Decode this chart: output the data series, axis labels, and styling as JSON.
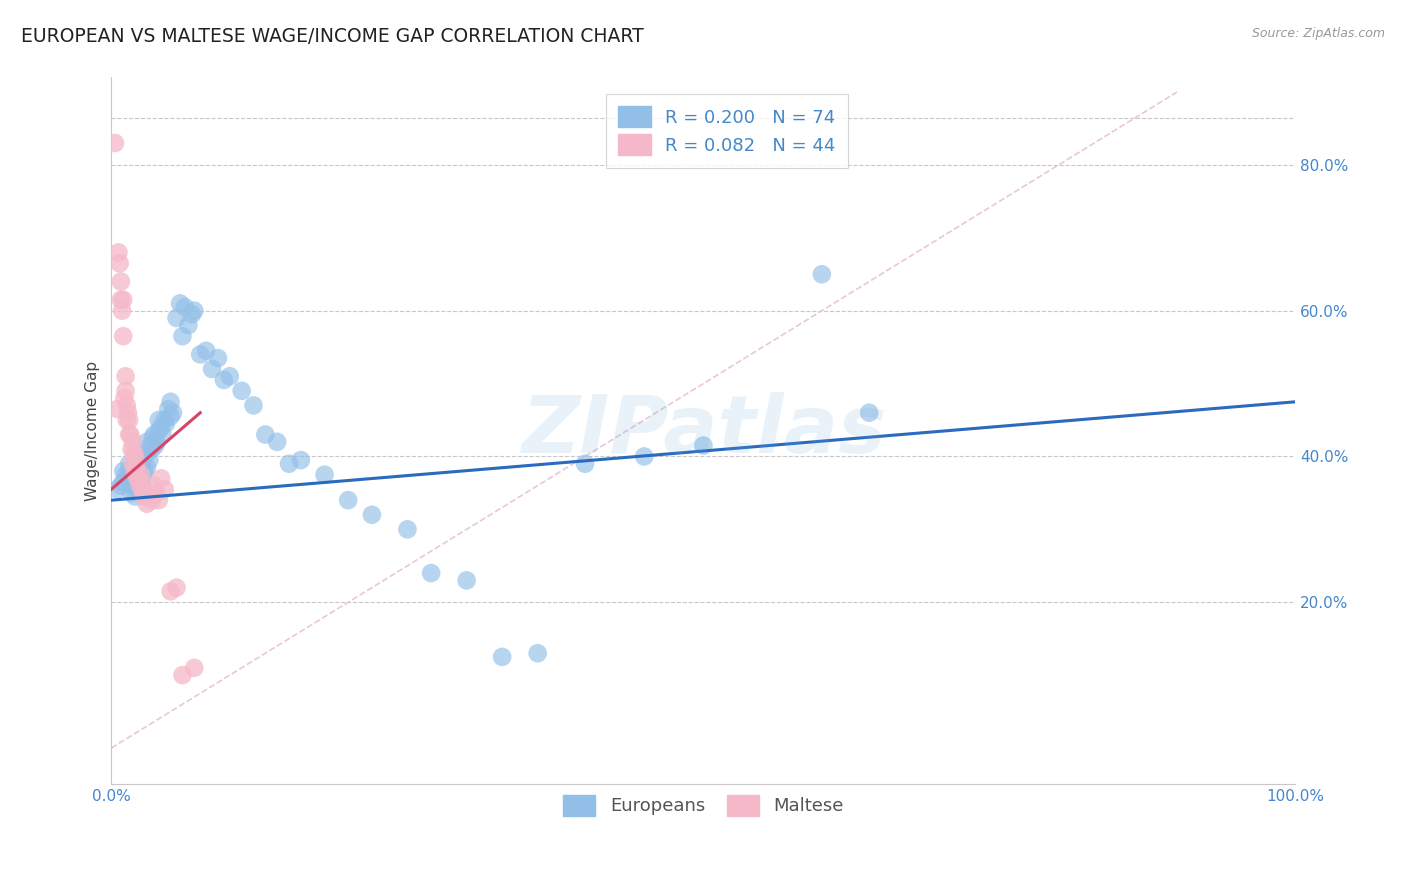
{
  "title": "EUROPEAN VS MALTESE WAGE/INCOME GAP CORRELATION CHART",
  "source": "Source: ZipAtlas.com",
  "ylabel": "Wage/Income Gap",
  "xlim": [
    0.0,
    1.0
  ],
  "ylim": [
    -0.05,
    0.92
  ],
  "xticks": [
    0.0,
    0.2,
    0.4,
    0.6,
    0.8,
    1.0
  ],
  "xticklabels": [
    "0.0%",
    "",
    "",
    "",
    "",
    "100.0%"
  ],
  "yticks_right": [
    0.2,
    0.4,
    0.6,
    0.8
  ],
  "yticklabels_right": [
    "20.0%",
    "40.0%",
    "60.0%",
    "80.0%"
  ],
  "blue_color": "#92bfe8",
  "pink_color": "#f5b8c8",
  "trendline_blue_color": "#2a6bbf",
  "trendline_pink_color": "#d94466",
  "diag_color": "#e8c8d4",
  "watermark": "ZIPatlas",
  "europeans_x": [
    0.005,
    0.008,
    0.01,
    0.01,
    0.012,
    0.013,
    0.015,
    0.015,
    0.017,
    0.018,
    0.02,
    0.02,
    0.02,
    0.022,
    0.022,
    0.023,
    0.025,
    0.025,
    0.026,
    0.027,
    0.028,
    0.028,
    0.03,
    0.03,
    0.03,
    0.032,
    0.033,
    0.034,
    0.035,
    0.036,
    0.037,
    0.038,
    0.04,
    0.04,
    0.042,
    0.043,
    0.045,
    0.046,
    0.048,
    0.05,
    0.05,
    0.052,
    0.055,
    0.058,
    0.06,
    0.062,
    0.065,
    0.068,
    0.07,
    0.075,
    0.08,
    0.085,
    0.09,
    0.095,
    0.1,
    0.11,
    0.12,
    0.13,
    0.14,
    0.15,
    0.16,
    0.18,
    0.2,
    0.22,
    0.25,
    0.27,
    0.3,
    0.33,
    0.36,
    0.4,
    0.45,
    0.5,
    0.6,
    0.64
  ],
  "europeans_y": [
    0.355,
    0.36,
    0.365,
    0.38,
    0.375,
    0.37,
    0.38,
    0.39,
    0.35,
    0.36,
    0.345,
    0.36,
    0.38,
    0.37,
    0.39,
    0.355,
    0.385,
    0.395,
    0.365,
    0.375,
    0.38,
    0.4,
    0.385,
    0.405,
    0.42,
    0.395,
    0.415,
    0.41,
    0.425,
    0.43,
    0.415,
    0.42,
    0.435,
    0.45,
    0.44,
    0.43,
    0.45,
    0.445,
    0.465,
    0.455,
    0.475,
    0.46,
    0.59,
    0.61,
    0.565,
    0.605,
    0.58,
    0.595,
    0.6,
    0.54,
    0.545,
    0.52,
    0.535,
    0.505,
    0.51,
    0.49,
    0.47,
    0.43,
    0.42,
    0.39,
    0.395,
    0.375,
    0.34,
    0.32,
    0.3,
    0.24,
    0.23,
    0.125,
    0.13,
    0.39,
    0.4,
    0.415,
    0.65,
    0.46
  ],
  "maltese_x": [
    0.003,
    0.005,
    0.006,
    0.007,
    0.008,
    0.008,
    0.009,
    0.01,
    0.01,
    0.011,
    0.012,
    0.012,
    0.013,
    0.013,
    0.014,
    0.015,
    0.015,
    0.016,
    0.017,
    0.018,
    0.018,
    0.019,
    0.02,
    0.02,
    0.021,
    0.022,
    0.023,
    0.024,
    0.025,
    0.026,
    0.027,
    0.028,
    0.03,
    0.032,
    0.034,
    0.036,
    0.038,
    0.04,
    0.042,
    0.045,
    0.05,
    0.055,
    0.06,
    0.07
  ],
  "maltese_y": [
    0.83,
    0.465,
    0.68,
    0.665,
    0.64,
    0.615,
    0.6,
    0.565,
    0.615,
    0.48,
    0.49,
    0.51,
    0.47,
    0.45,
    0.46,
    0.43,
    0.45,
    0.43,
    0.41,
    0.42,
    0.39,
    0.405,
    0.4,
    0.38,
    0.385,
    0.37,
    0.37,
    0.36,
    0.375,
    0.355,
    0.35,
    0.345,
    0.335,
    0.35,
    0.34,
    0.36,
    0.35,
    0.34,
    0.37,
    0.355,
    0.215,
    0.22,
    0.1,
    0.11
  ],
  "blue_trend_x": [
    0.0,
    1.0
  ],
  "blue_trend_y": [
    0.34,
    0.475
  ],
  "pink_trend_x": [
    0.0,
    0.075
  ],
  "pink_trend_y": [
    0.355,
    0.46
  ],
  "background_color": "#ffffff",
  "grid_color": "#c8c8c8",
  "tick_color": "#4488cc",
  "title_fontsize": 13.5,
  "label_fontsize": 11,
  "tick_fontsize": 11,
  "legend_fontsize": 13
}
